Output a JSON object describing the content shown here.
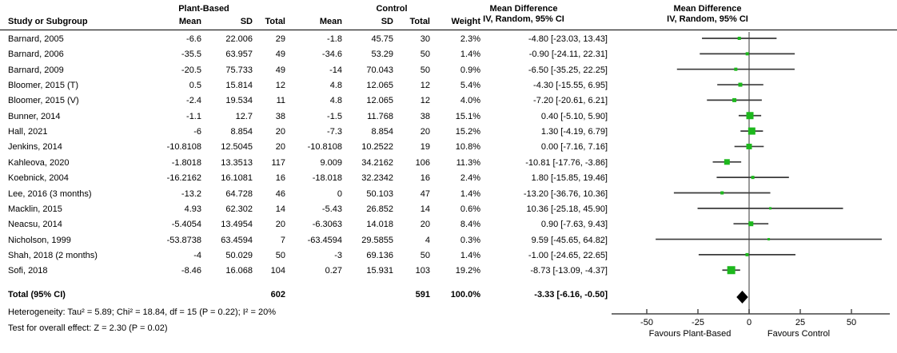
{
  "chart_data": {
    "type": "scatter",
    "subtype": "forest-plot-meta-analysis",
    "columns": {
      "group_plant": "Plant-Based",
      "group_control": "Control",
      "study": "Study or Subgroup",
      "mean": "Mean",
      "sd": "SD",
      "total": "Total",
      "weight": "Weight",
      "md_line1": "Mean Difference",
      "md_line2": "IV, Random, 95% CI",
      "plot_line1": "Mean Difference",
      "plot_line2": "IV, Random, 95% CI"
    },
    "studies": [
      {
        "name": "Barnard, 2005",
        "p_mean": "-6.6",
        "p_sd": "22.006",
        "p_total": "29",
        "c_mean": "-1.8",
        "c_sd": "45.75",
        "c_total": "30",
        "weight": "2.3%",
        "md_text": "-4.80 [-23.03, 13.43]",
        "est": -4.8,
        "lo": -23.03,
        "hi": 13.43,
        "w": 2.3
      },
      {
        "name": "Barnard, 2006",
        "p_mean": "-35.5",
        "p_sd": "63.957",
        "p_total": "49",
        "c_mean": "-34.6",
        "c_sd": "53.29",
        "c_total": "50",
        "weight": "1.4%",
        "md_text": "-0.90 [-24.11, 22.31]",
        "est": -0.9,
        "lo": -24.11,
        "hi": 22.31,
        "w": 1.4
      },
      {
        "name": "Barnard, 2009",
        "p_mean": "-20.5",
        "p_sd": "75.733",
        "p_total": "49",
        "c_mean": "-14",
        "c_sd": "70.043",
        "c_total": "50",
        "weight": "0.9%",
        "md_text": "-6.50 [-35.25, 22.25]",
        "est": -6.5,
        "lo": -35.25,
        "hi": 22.25,
        "w": 0.9
      },
      {
        "name": "Bloomer, 2015 (T)",
        "p_mean": "0.5",
        "p_sd": "15.814",
        "p_total": "12",
        "c_mean": "4.8",
        "c_sd": "12.065",
        "c_total": "12",
        "weight": "5.4%",
        "md_text": "-4.30 [-15.55, 6.95]",
        "est": -4.3,
        "lo": -15.55,
        "hi": 6.95,
        "w": 5.4
      },
      {
        "name": "Bloomer, 2015 (V)",
        "p_mean": "-2.4",
        "p_sd": "19.534",
        "p_total": "11",
        "c_mean": "4.8",
        "c_sd": "12.065",
        "c_total": "12",
        "weight": "4.0%",
        "md_text": "-7.20 [-20.61, 6.21]",
        "est": -7.2,
        "lo": -20.61,
        "hi": 6.21,
        "w": 4.0
      },
      {
        "name": "Bunner, 2014",
        "p_mean": "-1.1",
        "p_sd": "12.7",
        "p_total": "38",
        "c_mean": "-1.5",
        "c_sd": "11.768",
        "c_total": "38",
        "weight": "15.1%",
        "md_text": "0.40 [-5.10, 5.90]",
        "est": 0.4,
        "lo": -5.1,
        "hi": 5.9,
        "w": 15.1
      },
      {
        "name": "Hall, 2021",
        "p_mean": "-6",
        "p_sd": "8.854",
        "p_total": "20",
        "c_mean": "-7.3",
        "c_sd": "8.854",
        "c_total": "20",
        "weight": "15.2%",
        "md_text": "1.30 [-4.19, 6.79]",
        "est": 1.3,
        "lo": -4.19,
        "hi": 6.79,
        "w": 15.2
      },
      {
        "name": "Jenkins, 2014",
        "p_mean": "-10.8108",
        "p_sd": "12.5045",
        "p_total": "20",
        "c_mean": "-10.8108",
        "c_sd": "10.2522",
        "c_total": "19",
        "weight": "10.8%",
        "md_text": "0.00 [-7.16, 7.16]",
        "est": 0.0,
        "lo": -7.16,
        "hi": 7.16,
        "w": 10.8
      },
      {
        "name": "Kahleova, 2020",
        "p_mean": "-1.8018",
        "p_sd": "13.3513",
        "p_total": "117",
        "c_mean": "9.009",
        "c_sd": "34.2162",
        "c_total": "106",
        "weight": "11.3%",
        "md_text": "-10.81 [-17.76, -3.86]",
        "est": -10.81,
        "lo": -17.76,
        "hi": -3.86,
        "w": 11.3
      },
      {
        "name": "Koebnick, 2004",
        "p_mean": "-16.2162",
        "p_sd": "16.1081",
        "p_total": "16",
        "c_mean": "-18.018",
        "c_sd": "32.2342",
        "c_total": "16",
        "weight": "2.4%",
        "md_text": "1.80 [-15.85, 19.46]",
        "est": 1.8,
        "lo": -15.85,
        "hi": 19.46,
        "w": 2.4
      },
      {
        "name": "Lee, 2016 (3 months)",
        "p_mean": "-13.2",
        "p_sd": "64.728",
        "p_total": "46",
        "c_mean": "0",
        "c_sd": "50.103",
        "c_total": "47",
        "weight": "1.4%",
        "md_text": "-13.20 [-36.76, 10.36]",
        "est": -13.2,
        "lo": -36.76,
        "hi": 10.36,
        "w": 1.4
      },
      {
        "name": "Macklin, 2015",
        "p_mean": "4.93",
        "p_sd": "62.302",
        "p_total": "14",
        "c_mean": "-5.43",
        "c_sd": "26.852",
        "c_total": "14",
        "weight": "0.6%",
        "md_text": "10.36 [-25.18, 45.90]",
        "est": 10.36,
        "lo": -25.18,
        "hi": 45.9,
        "w": 0.6
      },
      {
        "name": "Neacsu, 2014",
        "p_mean": "-5.4054",
        "p_sd": "13.4954",
        "p_total": "20",
        "c_mean": "-6.3063",
        "c_sd": "14.018",
        "c_total": "20",
        "weight": "8.4%",
        "md_text": "0.90 [-7.63, 9.43]",
        "est": 0.9,
        "lo": -7.63,
        "hi": 9.43,
        "w": 8.4
      },
      {
        "name": "Nicholson, 1999",
        "p_mean": "-53.8738",
        "p_sd": "63.4594",
        "p_total": "7",
        "c_mean": "-63.4594",
        "c_sd": "29.5855",
        "c_total": "4",
        "weight": "0.3%",
        "md_text": "9.59 [-45.65, 64.82]",
        "est": 9.59,
        "lo": -45.65,
        "hi": 64.82,
        "w": 0.3
      },
      {
        "name": "Shah, 2018 (2 months)",
        "p_mean": "-4",
        "p_sd": "50.029",
        "p_total": "50",
        "c_mean": "-3",
        "c_sd": "69.136",
        "c_total": "50",
        "weight": "1.4%",
        "md_text": "-1.00 [-24.65, 22.65]",
        "est": -1.0,
        "lo": -24.65,
        "hi": 22.65,
        "w": 1.4
      },
      {
        "name": "Sofi, 2018",
        "p_mean": "-8.46",
        "p_sd": "16.068",
        "p_total": "104",
        "c_mean": "0.27",
        "c_sd": "15.931",
        "c_total": "103",
        "weight": "19.2%",
        "md_text": "-8.73 [-13.09, -4.37]",
        "est": -8.73,
        "lo": -13.09,
        "hi": -4.37,
        "w": 19.2
      }
    ],
    "total": {
      "label": "Total (95% CI)",
      "p_total": "602",
      "c_total": "591",
      "weight": "100.0%",
      "md_text": "-3.33 [-6.16, -0.50]",
      "est": -3.33,
      "lo": -6.16,
      "hi": -0.5
    },
    "footer": {
      "heterogeneity": "Heterogeneity: Tau² = 5.89; Chi² = 18.84, df = 15 (P = 0.22); I² = 20%",
      "overall_effect": "Test for overall effect: Z = 2.30 (P = 0.02)"
    },
    "axis": {
      "ticks": [
        -50,
        -25,
        0,
        25,
        50
      ],
      "xlim": [
        -67,
        69
      ],
      "favours_left": "Favours Plant-Based",
      "favours_right": "Favours Control"
    },
    "colors": {
      "square": "#1db81d",
      "ci_line": "#3a3a3a",
      "zero_line": "#808080",
      "axis_line": "#444444",
      "diamond": "#000000",
      "text": "#000000"
    }
  }
}
